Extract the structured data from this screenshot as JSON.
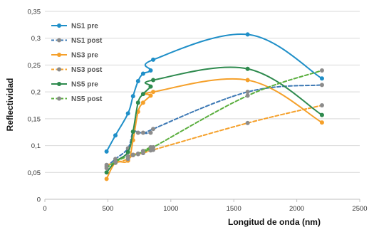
{
  "chart_data": {
    "type": "line",
    "title": "",
    "xlabel": "Longitud de onda (nm)",
    "ylabel": "Reflectividad",
    "xlim": [
      0,
      2500
    ],
    "ylim": [
      0,
      0.35
    ],
    "x_ticks": [
      0,
      500,
      1000,
      1500,
      2000,
      2500
    ],
    "x_tick_labels": [
      "0",
      "500",
      "1000",
      "1500",
      "2000",
      "2500"
    ],
    "y_ticks": [
      0,
      0.05,
      0.1,
      0.15,
      0.2,
      0.25,
      0.3,
      0.35
    ],
    "y_tick_labels": [
      "0",
      "0,05",
      "0,1",
      "0,15",
      "0,2",
      "0,25",
      "0,3",
      "0,35"
    ],
    "grid": "horizontal",
    "legend_position": "top-left",
    "series": [
      {
        "name": "NS1 pre",
        "color": "#1f8fc8",
        "style": "solid",
        "x": [
          490,
          560,
          660,
          700,
          740,
          780,
          840,
          860,
          1610,
          2200
        ],
        "y": [
          0.089,
          0.119,
          0.16,
          0.192,
          0.22,
          0.234,
          0.24,
          0.26,
          0.307,
          0.225
        ]
      },
      {
        "name": "NS1 post",
        "color": "#3c78b4",
        "style": "dashed",
        "x": [
          490,
          560,
          660,
          700,
          740,
          780,
          840,
          860,
          1610,
          2200
        ],
        "y": [
          0.061,
          0.075,
          0.095,
          0.126,
          0.124,
          0.124,
          0.124,
          0.131,
          0.2,
          0.213
        ]
      },
      {
        "name": "NS3 pre",
        "color": "#f5a02a",
        "style": "solid",
        "x": [
          490,
          560,
          660,
          700,
          740,
          780,
          840,
          860,
          1610,
          2200
        ],
        "y": [
          0.038,
          0.068,
          0.072,
          0.11,
          0.163,
          0.18,
          0.193,
          0.2,
          0.222,
          0.143
        ]
      },
      {
        "name": "NS3 post",
        "color": "#f5a02a",
        "style": "dashed",
        "x": [
          490,
          560,
          660,
          700,
          740,
          780,
          840,
          860,
          1610,
          2200
        ],
        "y": [
          0.064,
          0.068,
          0.075,
          0.083,
          0.085,
          0.086,
          0.091,
          0.092,
          0.142,
          0.175
        ]
      },
      {
        "name": "NS5 pre",
        "color": "#2e8a4e",
        "style": "solid",
        "x": [
          490,
          560,
          660,
          700,
          740,
          780,
          840,
          860,
          1610,
          2200
        ],
        "y": [
          0.05,
          0.07,
          0.088,
          0.126,
          0.18,
          0.196,
          0.21,
          0.222,
          0.243,
          0.157
        ]
      },
      {
        "name": "NS5 post",
        "color": "#5aae3e",
        "style": "dashed",
        "x": [
          490,
          560,
          660,
          700,
          740,
          780,
          840,
          860,
          1610,
          2200
        ],
        "y": [
          0.058,
          0.07,
          0.08,
          0.082,
          0.084,
          0.09,
          0.097,
          0.097,
          0.193,
          0.24
        ]
      }
    ]
  }
}
